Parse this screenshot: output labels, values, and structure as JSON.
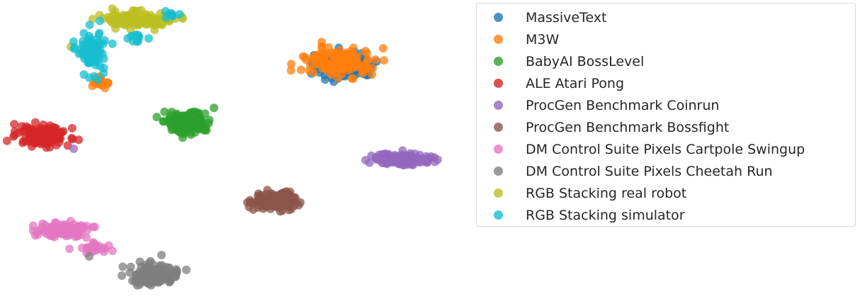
{
  "chart_data": {
    "type": "scatter",
    "title": "",
    "xlabel": "",
    "ylabel": "",
    "axes_visible": false,
    "grid": false,
    "legend_position": "right",
    "point_alpha": 0.75,
    "series": [
      {
        "name": "MassiveText",
        "color": "#1f77b4",
        "clusters": [
          {
            "center": [
              485,
              92
            ],
            "spread": [
              40,
              17
            ],
            "count": 120
          }
        ]
      },
      {
        "name": "M3W",
        "color": "#ff7f0e",
        "clusters": [
          {
            "center": [
              478,
              88
            ],
            "spread": [
              42,
              18
            ],
            "count": 150
          },
          {
            "center": [
              142,
              117
            ],
            "spread": [
              12,
              6
            ],
            "count": 22
          }
        ]
      },
      {
        "name": "BabyAI BossLevel",
        "color": "#2ca02c",
        "clusters": [
          {
            "center": [
              265,
              172
            ],
            "spread": [
              30,
              14
            ],
            "count": 140
          }
        ]
      },
      {
        "name": "ALE Atari Pong",
        "color": "#d62728",
        "clusters": [
          {
            "center": [
              60,
              192
            ],
            "spread": [
              32,
              12
            ],
            "count": 150
          }
        ]
      },
      {
        "name": "ProcGen Benchmark Coinrun",
        "color": "#9467bd",
        "clusters": [
          {
            "center": [
              572,
              225
            ],
            "spread": [
              35,
              8
            ],
            "count": 140
          },
          {
            "center": [
              104,
              210
            ],
            "spread": [
              1,
              1
            ],
            "count": 1
          }
        ]
      },
      {
        "name": "ProcGen Benchmark Bossfight",
        "color": "#8c564b",
        "clusters": [
          {
            "center": [
              385,
              283
            ],
            "spread": [
              30,
              12
            ],
            "count": 140
          }
        ]
      },
      {
        "name": "DM Control Suite Pixels Cartpole Swingup",
        "color": "#e377c2",
        "clusters": [
          {
            "center": [
              90,
              325
            ],
            "spread": [
              35,
              9
            ],
            "count": 100
          },
          {
            "center": [
              130,
              350
            ],
            "spread": [
              20,
              6
            ],
            "count": 35
          }
        ]
      },
      {
        "name": "DM Control Suite Pixels Cheetah Run",
        "color": "#7f7f7f",
        "clusters": [
          {
            "center": [
              220,
              388
            ],
            "spread": [
              30,
              12
            ],
            "count": 130
          },
          {
            "center": [
              126,
              362
            ],
            "spread": [
              1,
              1
            ],
            "count": 1
          },
          {
            "center": [
              228,
              360
            ],
            "spread": [
              1,
              1
            ],
            "count": 1
          }
        ]
      },
      {
        "name": "RGB Stacking real robot",
        "color": "#bcbd22",
        "clusters": [
          {
            "center": [
              190,
              28
            ],
            "spread": [
              45,
              10
            ],
            "count": 130
          },
          {
            "center": [
              100,
              66
            ],
            "spread": [
              1,
              1
            ],
            "count": 1
          }
        ]
      },
      {
        "name": "RGB Stacking simulator",
        "color": "#17becf",
        "clusters": [
          {
            "center": [
              130,
              68
            ],
            "spread": [
              18,
              28
            ],
            "count": 90
          },
          {
            "center": [
              195,
              55
            ],
            "spread": [
              12,
              8
            ],
            "count": 12
          },
          {
            "center": [
              240,
              20
            ],
            "spread": [
              12,
              6
            ],
            "count": 8
          }
        ]
      }
    ]
  }
}
